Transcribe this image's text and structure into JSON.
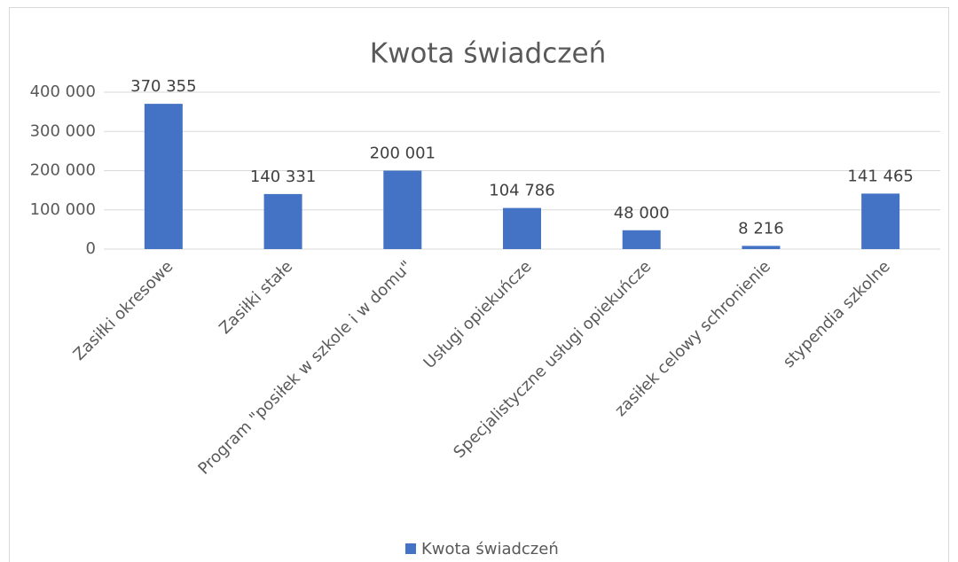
{
  "chart_data": {
    "type": "bar",
    "title": "Kwota świadczeń",
    "categories": [
      "Zasiłki okresowe",
      "Zasiłki stałe",
      "Program \"posiłek w szkole i w domu\"",
      "Usługi opiekuńcze",
      "Specjalistyczne usługi opiekuńcze",
      "zasiłek celowy schronienie",
      "stypendia szkolne"
    ],
    "series": [
      {
        "name": "Kwota świadczeń",
        "color": "#4472c4",
        "values": [
          370355,
          140331,
          200001,
          104786,
          48000,
          8216,
          141465
        ],
        "value_labels": [
          "370 355",
          "140 331",
          "200 001",
          "104 786",
          "48 000",
          "8 216",
          "141 465"
        ]
      }
    ],
    "ylim": [
      0,
      400000
    ],
    "yticks": [
      0,
      {
        "value": 100000,
        "label": "100 000"
      },
      {
        "value": 200000,
        "label": "200 000"
      },
      {
        "value": 300000,
        "label": "300 000"
      },
      {
        "value": 400000,
        "label": "400 000"
      }
    ],
    "grid": true,
    "legend": "bottom"
  }
}
